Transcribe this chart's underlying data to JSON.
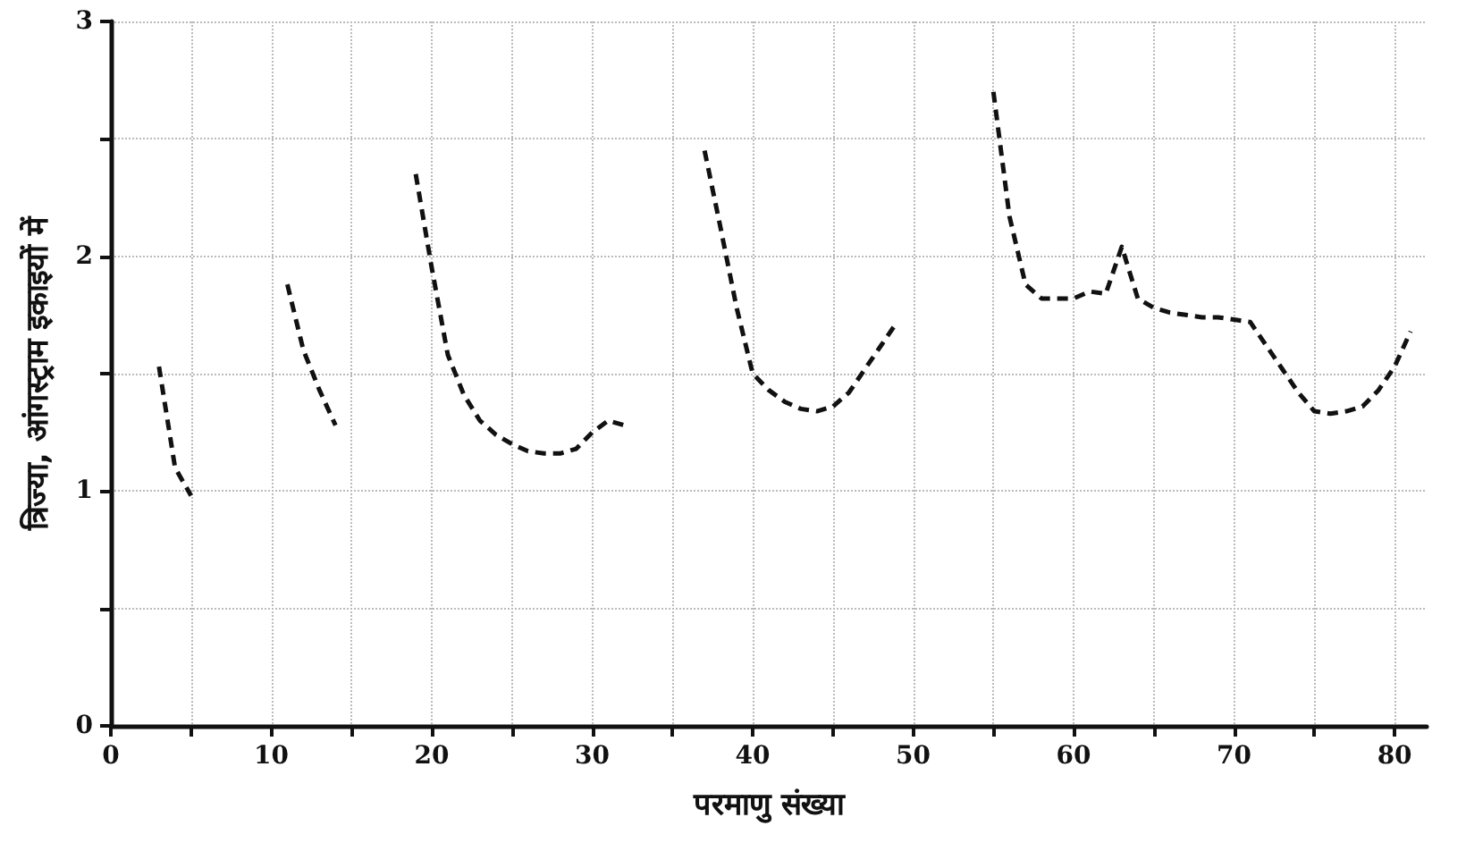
{
  "chart_data": {
    "type": "line",
    "xlabel": "परमाणु संख्या",
    "ylabel": "त्रिज्या, आंगस्ट्राम इकाइयों में",
    "x": [
      3,
      4,
      5,
      6,
      11,
      12,
      13,
      14,
      15,
      19,
      20,
      21,
      22,
      23,
      24,
      25,
      26,
      27,
      28,
      29,
      30,
      31,
      32,
      33,
      37,
      38,
      39,
      40,
      41,
      42,
      43,
      44,
      45,
      46,
      47,
      48,
      49,
      50,
      51,
      55,
      56,
      57,
      58,
      59,
      60,
      61,
      62,
      63,
      64,
      65,
      66,
      67,
      68,
      69,
      70,
      71,
      72,
      73,
      74,
      75,
      76,
      77,
      78,
      79,
      80,
      81
    ],
    "series": [
      {
        "color": "#111111",
        "values": [
          1.53,
          1.1,
          0.98,
          null,
          1.88,
          1.6,
          1.43,
          1.28,
          null,
          2.35,
          1.95,
          1.58,
          1.41,
          1.3,
          1.24,
          1.2,
          1.17,
          1.16,
          1.16,
          1.18,
          1.25,
          1.3,
          1.28,
          null,
          2.45,
          2.12,
          1.78,
          1.5,
          1.43,
          1.38,
          1.35,
          1.34,
          1.36,
          1.42,
          1.52,
          1.62,
          1.72,
          null,
          null,
          2.7,
          2.17,
          1.88,
          1.82,
          1.82,
          1.82,
          1.85,
          1.84,
          2.04,
          1.82,
          1.78,
          1.76,
          1.75,
          1.74,
          1.74,
          1.73,
          1.72,
          1.62,
          1.52,
          1.42,
          1.34,
          1.33,
          1.34,
          1.36,
          1.43,
          1.53,
          1.68
        ]
      }
    ],
    "xlim": [
      0,
      82
    ],
    "xticks": [
      0,
      {
        "value": 5,
        "label": null
      },
      10,
      {
        "value": 15,
        "label": null
      },
      20,
      {
        "value": 25,
        "label": null
      },
      30,
      {
        "value": 35,
        "label": null
      },
      40,
      {
        "value": 45,
        "label": null
      },
      50,
      {
        "value": 55,
        "label": null
      },
      60,
      {
        "value": 65,
        "label": null
      },
      70,
      {
        "value": 75,
        "label": null
      },
      80
    ],
    "ylim": [
      0,
      3
    ],
    "yticks": [
      0,
      {
        "value": 0.5,
        "label": null
      },
      1,
      {
        "value": 1.5,
        "label": null
      },
      2,
      {
        "value": 2.5,
        "label": null
      },
      3
    ],
    "grid": true,
    "marker": "none",
    "line_style": "dashed"
  }
}
